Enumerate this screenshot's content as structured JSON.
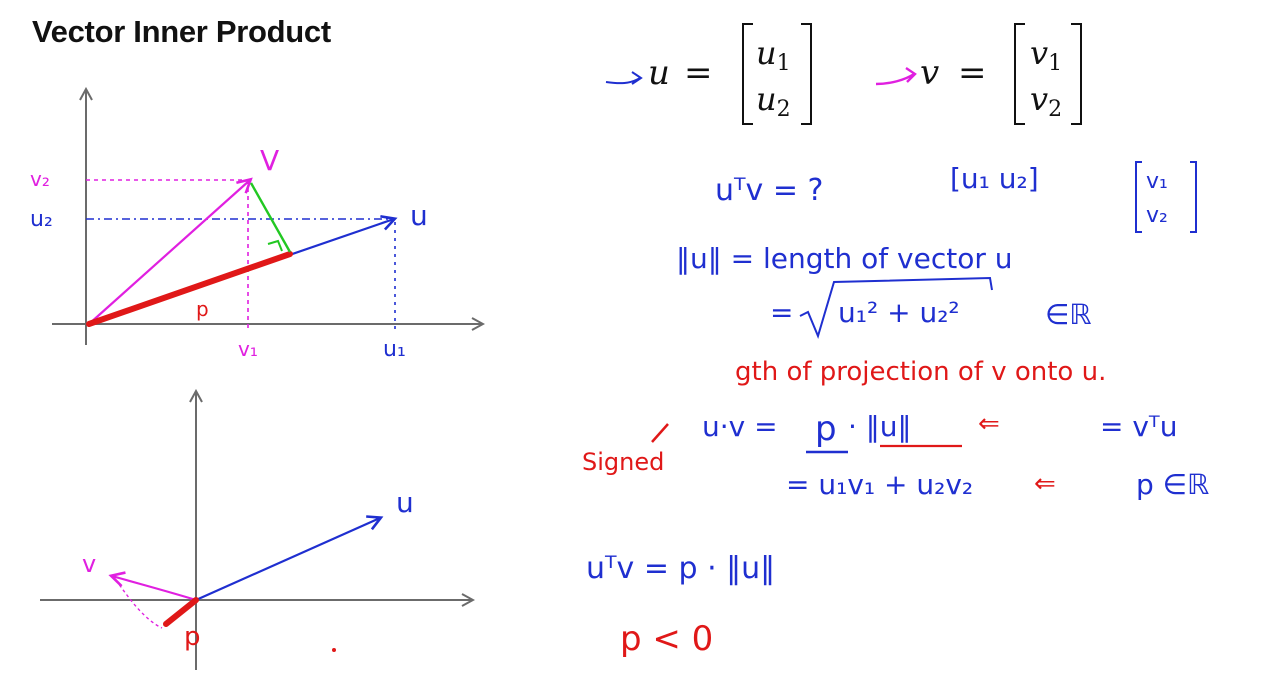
{
  "slide": {
    "title": "Vector Inner Product"
  },
  "colors": {
    "blue": "#1f2fd0",
    "magenta": "#e020e0",
    "red": "#e01818",
    "green": "#22c822",
    "axis": "#6b6b6b",
    "black": "#111111"
  },
  "figure_top": {
    "v_label": "V",
    "u_label": "u",
    "v2_tick": "v₂",
    "u2_tick": "u₂",
    "v1_tick": "v₁",
    "u1_tick": "u₁",
    "p_label": "p"
  },
  "figure_bottom": {
    "u_label": "u",
    "v_label": "v",
    "p_label": "p"
  },
  "definitions": {
    "u_vec": {
      "name": "u",
      "c1": "u",
      "c1_sub": "1",
      "c2": "u",
      "c2_sub": "2"
    },
    "v_vec": {
      "name": "v",
      "c1": "v",
      "c1_sub": "1",
      "c2": "v",
      "c2_sub": "2"
    }
  },
  "notes": {
    "line1": "uᵀv = ?",
    "row_vec": "[u₁  u₂]",
    "col_v1": "v₁",
    "col_v2": "v₂",
    "line2": "‖u‖ = length of vector u",
    "line3_eq": "=",
    "line3_sqrt": "u₁² + u₂²",
    "line3_tail": "∈ℝ",
    "line4": "gth of projection of v onto u.",
    "line5_lhs": "u·v =",
    "line5_p": "p",
    "line5_norm": "· ‖u‖",
    "line5_arrow": "⇐",
    "line5_rhs": "= vᵀu",
    "signed": "Signed",
    "line6": "= u₁v₁ + u₂v₂",
    "line6_arrow": "⇐",
    "line6_rhs": "p ∈ℝ",
    "line7": "uᵀv = p · ‖u‖",
    "line8": "p < 0"
  }
}
